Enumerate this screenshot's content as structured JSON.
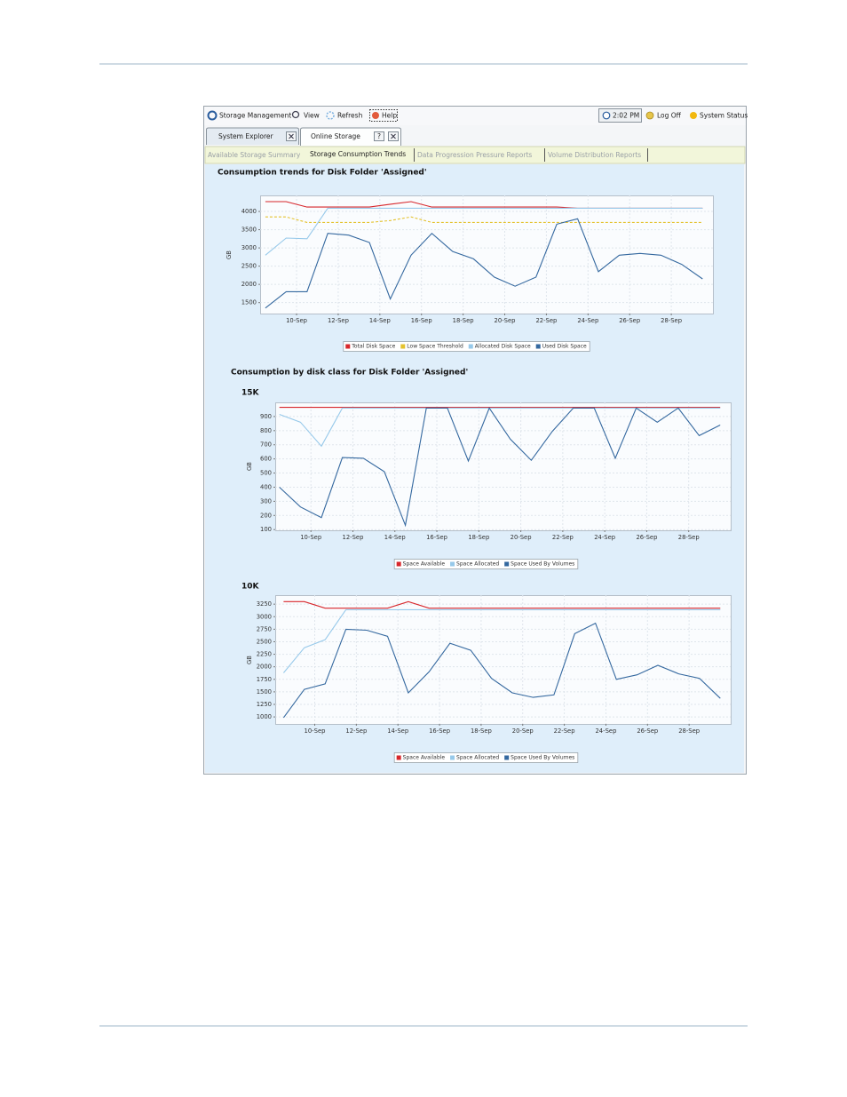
{
  "toolbar": {
    "items": [
      "Storage Management",
      "View",
      "Refresh",
      "Help"
    ],
    "time": "2:02 PM",
    "log_off": "Log Off",
    "status": "System Status"
  },
  "tabs": [
    "System Explorer",
    "Online Storage"
  ],
  "tab_help": "?",
  "subtabs": [
    "Available Storage Summary",
    "Storage Consumption Trends",
    "Data Progression Pressure Reports",
    "Volume Distribution Reports"
  ],
  "section_title": "Consumption by disk class for Disk Folder 'Assigned'",
  "chart_data": [
    {
      "type": "line",
      "title": "Consumption trends for Disk Folder 'Assigned'",
      "ylabel": "GB",
      "x": [
        8.5,
        9.5,
        10.5,
        11.5,
        12.5,
        13.5,
        14.5,
        15.5,
        16.5,
        17.5,
        18.5,
        19.5,
        20.5,
        21.5,
        22.5,
        23.5,
        24.5,
        25.5,
        26.5,
        27.5,
        28.5,
        29.5
      ],
      "xlim": [
        8.25,
        30
      ],
      "xticks": [
        {
          "value": 10,
          "label": "10-Sep"
        },
        {
          "value": 12,
          "label": "12-Sep"
        },
        {
          "value": 14,
          "label": "14-Sep"
        },
        {
          "value": 16,
          "label": "16-Sep"
        },
        {
          "value": 18,
          "label": "18-Sep"
        },
        {
          "value": 20,
          "label": "20-Sep"
        },
        {
          "value": 22,
          "label": "22-Sep"
        },
        {
          "value": 24,
          "label": "24-Sep"
        },
        {
          "value": 26,
          "label": "26-Sep"
        },
        {
          "value": 28,
          "label": "28-Sep"
        }
      ],
      "ylim": [
        1200,
        4440
      ],
      "yticks": [
        1500,
        2000,
        2500,
        3000,
        3500,
        4000
      ],
      "grid": true,
      "series": [
        {
          "name": "Total Disk Space",
          "color": "#d7262b",
          "values": [
            4270,
            4270,
            4120,
            4120,
            4120,
            4120,
            4200,
            4270,
            4120,
            4120,
            4120,
            4120,
            4120,
            4120,
            4120,
            4090,
            4090,
            4090,
            4090,
            4090,
            4090,
            4090
          ]
        },
        {
          "name": "Low Space Threshold",
          "color": "#e4c22e",
          "style": "dashed",
          "values": [
            3850,
            3850,
            3700,
            3700,
            3700,
            3700,
            3750,
            3850,
            3700,
            3700,
            3700,
            3700,
            3700,
            3700,
            3700,
            3700,
            3700,
            3700,
            3700,
            3700,
            3700,
            3700
          ]
        },
        {
          "name": "Allocated Disk Space",
          "color": "#97c9ea",
          "values": [
            2800,
            3270,
            3250,
            4090,
            4090,
            4090,
            4090,
            4090,
            4090,
            4090,
            4090,
            4090,
            4090,
            4090,
            4090,
            4090,
            4090,
            4090,
            4090,
            4090,
            4090,
            4090
          ]
        },
        {
          "name": "Used Disk Space",
          "color": "#34689f",
          "values": [
            1350,
            1800,
            1800,
            3400,
            3350,
            3150,
            1600,
            2800,
            3400,
            2900,
            2700,
            2200,
            1950,
            2200,
            3650,
            3800,
            2350,
            2800,
            2850,
            2800,
            2550,
            2150
          ]
        }
      ]
    },
    {
      "type": "line",
      "title": "15K",
      "ylabel": "GB",
      "x": [
        8.5,
        9.5,
        10.5,
        11.5,
        12.5,
        13.5,
        14.5,
        15.5,
        16.5,
        17.5,
        18.5,
        19.5,
        20.5,
        21.5,
        22.5,
        23.5,
        24.5,
        25.5,
        26.5,
        27.5,
        28.5,
        29.5
      ],
      "xlim": [
        8.3,
        30
      ],
      "xticks": [
        {
          "value": 10,
          "label": "10-Sep"
        },
        {
          "value": 12,
          "label": "12-Sep"
        },
        {
          "value": 14,
          "label": "14-Sep"
        },
        {
          "value": 16,
          "label": "16-Sep"
        },
        {
          "value": 18,
          "label": "18-Sep"
        },
        {
          "value": 20,
          "label": "20-Sep"
        },
        {
          "value": 22,
          "label": "22-Sep"
        },
        {
          "value": 24,
          "label": "24-Sep"
        },
        {
          "value": 26,
          "label": "26-Sep"
        },
        {
          "value": 28,
          "label": "28-Sep"
        }
      ],
      "ylim": [
        95,
        1000
      ],
      "yticks": [
        100,
        200,
        300,
        400,
        500,
        600,
        700,
        800,
        900
      ],
      "grid": true,
      "series": [
        {
          "name": "Space Available",
          "color": "#d7262b",
          "values": [
            965,
            965,
            965,
            965,
            965,
            965,
            965,
            965,
            965,
            965,
            965,
            965,
            965,
            965,
            965,
            965,
            965,
            965,
            965,
            965,
            965,
            965
          ]
        },
        {
          "name": "Space Allocated",
          "color": "#97c9ea",
          "values": [
            915,
            860,
            690,
            960,
            960,
            960,
            960,
            960,
            960,
            960,
            960,
            960,
            960,
            960,
            960,
            960,
            960,
            960,
            960,
            960,
            960,
            960
          ]
        },
        {
          "name": "Space Used By Volumes",
          "color": "#34689f",
          "values": [
            400,
            260,
            185,
            610,
            605,
            510,
            130,
            960,
            960,
            585,
            960,
            740,
            590,
            795,
            960,
            960,
            605,
            960,
            860,
            960,
            765,
            840
          ]
        }
      ]
    },
    {
      "type": "line",
      "title": "10K",
      "ylabel": "GB",
      "x": [
        8.5,
        9.5,
        10.5,
        11.5,
        12.5,
        13.5,
        14.5,
        15.5,
        16.5,
        17.5,
        18.5,
        19.5,
        20.5,
        21.5,
        22.5,
        23.5,
        24.5,
        25.5,
        26.5,
        27.5,
        28.5,
        29.5
      ],
      "xlim": [
        8.1,
        30
      ],
      "xticks": [
        {
          "value": 10,
          "label": "10-Sep"
        },
        {
          "value": 12,
          "label": "12-Sep"
        },
        {
          "value": 14,
          "label": "14-Sep"
        },
        {
          "value": 16,
          "label": "16-Sep"
        },
        {
          "value": 18,
          "label": "18-Sep"
        },
        {
          "value": 20,
          "label": "20-Sep"
        },
        {
          "value": 22,
          "label": "22-Sep"
        },
        {
          "value": 24,
          "label": "24-Sep"
        },
        {
          "value": 26,
          "label": "26-Sep"
        },
        {
          "value": 28,
          "label": "28-Sep"
        }
      ],
      "ylim": [
        860,
        3430
      ],
      "yticks": [
        1000,
        1250,
        1500,
        1750,
        2000,
        2250,
        2500,
        2750,
        3000,
        3250
      ],
      "grid": true,
      "series": [
        {
          "name": "Space Available",
          "color": "#d7262b",
          "values": [
            3300,
            3300,
            3170,
            3170,
            3170,
            3170,
            3300,
            3170,
            3170,
            3170,
            3170,
            3170,
            3170,
            3170,
            3170,
            3170,
            3170,
            3170,
            3170,
            3170,
            3170,
            3170
          ]
        },
        {
          "name": "Space Allocated",
          "color": "#97c9ea",
          "values": [
            1880,
            2380,
            2540,
            3140,
            3140,
            3140,
            3140,
            3140,
            3140,
            3140,
            3140,
            3140,
            3140,
            3140,
            3140,
            3140,
            3140,
            3140,
            3140,
            3140,
            3140,
            3140
          ]
        },
        {
          "name": "Space Used By Volumes",
          "color": "#34689f",
          "values": [
            985,
            1550,
            1660,
            2750,
            2730,
            2610,
            1480,
            1900,
            2470,
            2330,
            1770,
            1480,
            1390,
            1440,
            2660,
            2870,
            1750,
            1840,
            2030,
            1860,
            1770,
            1370
          ]
        }
      ]
    }
  ]
}
